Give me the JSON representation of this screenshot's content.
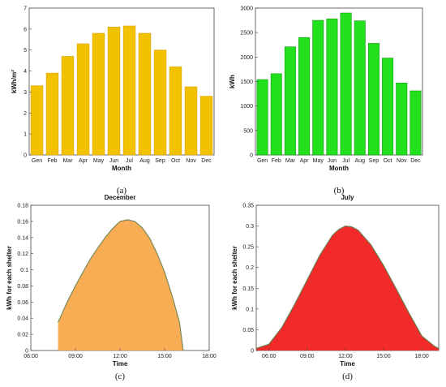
{
  "colors": {
    "a_bar": "#f2c200",
    "a_stroke": "#d9a300",
    "b_bar": "#22e01c",
    "b_stroke": "#129e10",
    "c_fill": "#f8ac54",
    "c_stroke": "#7a8a5a",
    "d_fill": "#f22a2a",
    "d_stroke": "#6b7a4a"
  },
  "chart_data": [
    {
      "id": "a",
      "panel_label": "(a)",
      "type": "bar",
      "title": "",
      "xlabel": "Month",
      "ylabel": "kWh/m²",
      "categories": [
        "Gen",
        "Feb",
        "Mar",
        "Apr",
        "May",
        "Jun",
        "Jul",
        "Aug",
        "Sep",
        "Oct",
        "Nov",
        "Dec"
      ],
      "values": [
        3.3,
        3.9,
        4.7,
        5.3,
        5.8,
        6.1,
        6.15,
        5.8,
        5.0,
        4.2,
        3.25,
        2.8
      ],
      "ylim": [
        0,
        7
      ],
      "yticks": [
        "0",
        "1",
        "2",
        "3",
        "4",
        "5",
        "6",
        "7"
      ],
      "grid": false
    },
    {
      "id": "b",
      "panel_label": "(b)",
      "type": "bar",
      "title": "",
      "xlabel": "Month",
      "ylabel": "kWh",
      "categories": [
        "Gen",
        "Feb",
        "Mar",
        "Apr",
        "May",
        "Jun",
        "Jul",
        "Aug",
        "Sep",
        "Oct",
        "Nov",
        "Dec"
      ],
      "values": [
        1540,
        1660,
        2210,
        2400,
        2750,
        2780,
        2900,
        2740,
        2280,
        1980,
        1470,
        1310
      ],
      "ylim": [
        0,
        3000
      ],
      "yticks": [
        "0",
        "500",
        "1000",
        "1500",
        "2000",
        "2500",
        "3000"
      ],
      "grid": false
    },
    {
      "id": "c",
      "panel_label": "(c)",
      "type": "area",
      "title": "December",
      "xlabel": "Time",
      "ylabel": "kWh for each shelter",
      "x_ticks": [
        "06:00",
        "09:00",
        "12:00",
        "15:00",
        "18:00"
      ],
      "xlim": [
        "06:00",
        "18:00"
      ],
      "ylim": [
        0,
        0.18
      ],
      "yticks": [
        "0",
        "0.02",
        "0.04",
        "0.06",
        "0.08",
        "0.1",
        "0.12",
        "0.14",
        "0.16",
        "0.18"
      ],
      "series": [
        {
          "x": [
            "07:50",
            "08:30",
            "09:00",
            "09:30",
            "10:00",
            "10:30",
            "11:00",
            "11:30",
            "12:00",
            "12:30",
            "13:00",
            "13:30",
            "14:00",
            "14:30",
            "15:00",
            "15:30",
            "16:00",
            "16:15"
          ],
          "y": [
            0.035,
            0.062,
            0.08,
            0.097,
            0.113,
            0.127,
            0.14,
            0.151,
            0.16,
            0.162,
            0.16,
            0.152,
            0.139,
            0.12,
            0.097,
            0.068,
            0.035,
            0.0
          ]
        }
      ],
      "grid": false
    },
    {
      "id": "d",
      "panel_label": "(d)",
      "type": "area",
      "title": "July",
      "xlabel": "Time",
      "ylabel": "kWh for each shelter",
      "x_ticks": [
        "06:00",
        "09:00",
        "12:00",
        "15:00",
        "18:00"
      ],
      "xlim": [
        "05:00",
        "19:20"
      ],
      "ylim": [
        0,
        0.35
      ],
      "yticks": [
        "0",
        "0.05",
        "0.1",
        "0.15",
        "0.2",
        "0.25",
        "0.3",
        "0.35"
      ],
      "series": [
        {
          "x": [
            "05:00",
            "06:00",
            "07:00",
            "08:00",
            "09:00",
            "10:00",
            "11:00",
            "11:30",
            "12:00",
            "12:30",
            "13:00",
            "14:00",
            "15:00",
            "16:00",
            "17:00",
            "18:00",
            "19:00",
            "19:20"
          ],
          "y": [
            0.005,
            0.015,
            0.055,
            0.11,
            0.17,
            0.23,
            0.278,
            0.292,
            0.3,
            0.298,
            0.29,
            0.255,
            0.205,
            0.148,
            0.09,
            0.035,
            0.01,
            0.005
          ]
        }
      ],
      "grid": false
    }
  ]
}
